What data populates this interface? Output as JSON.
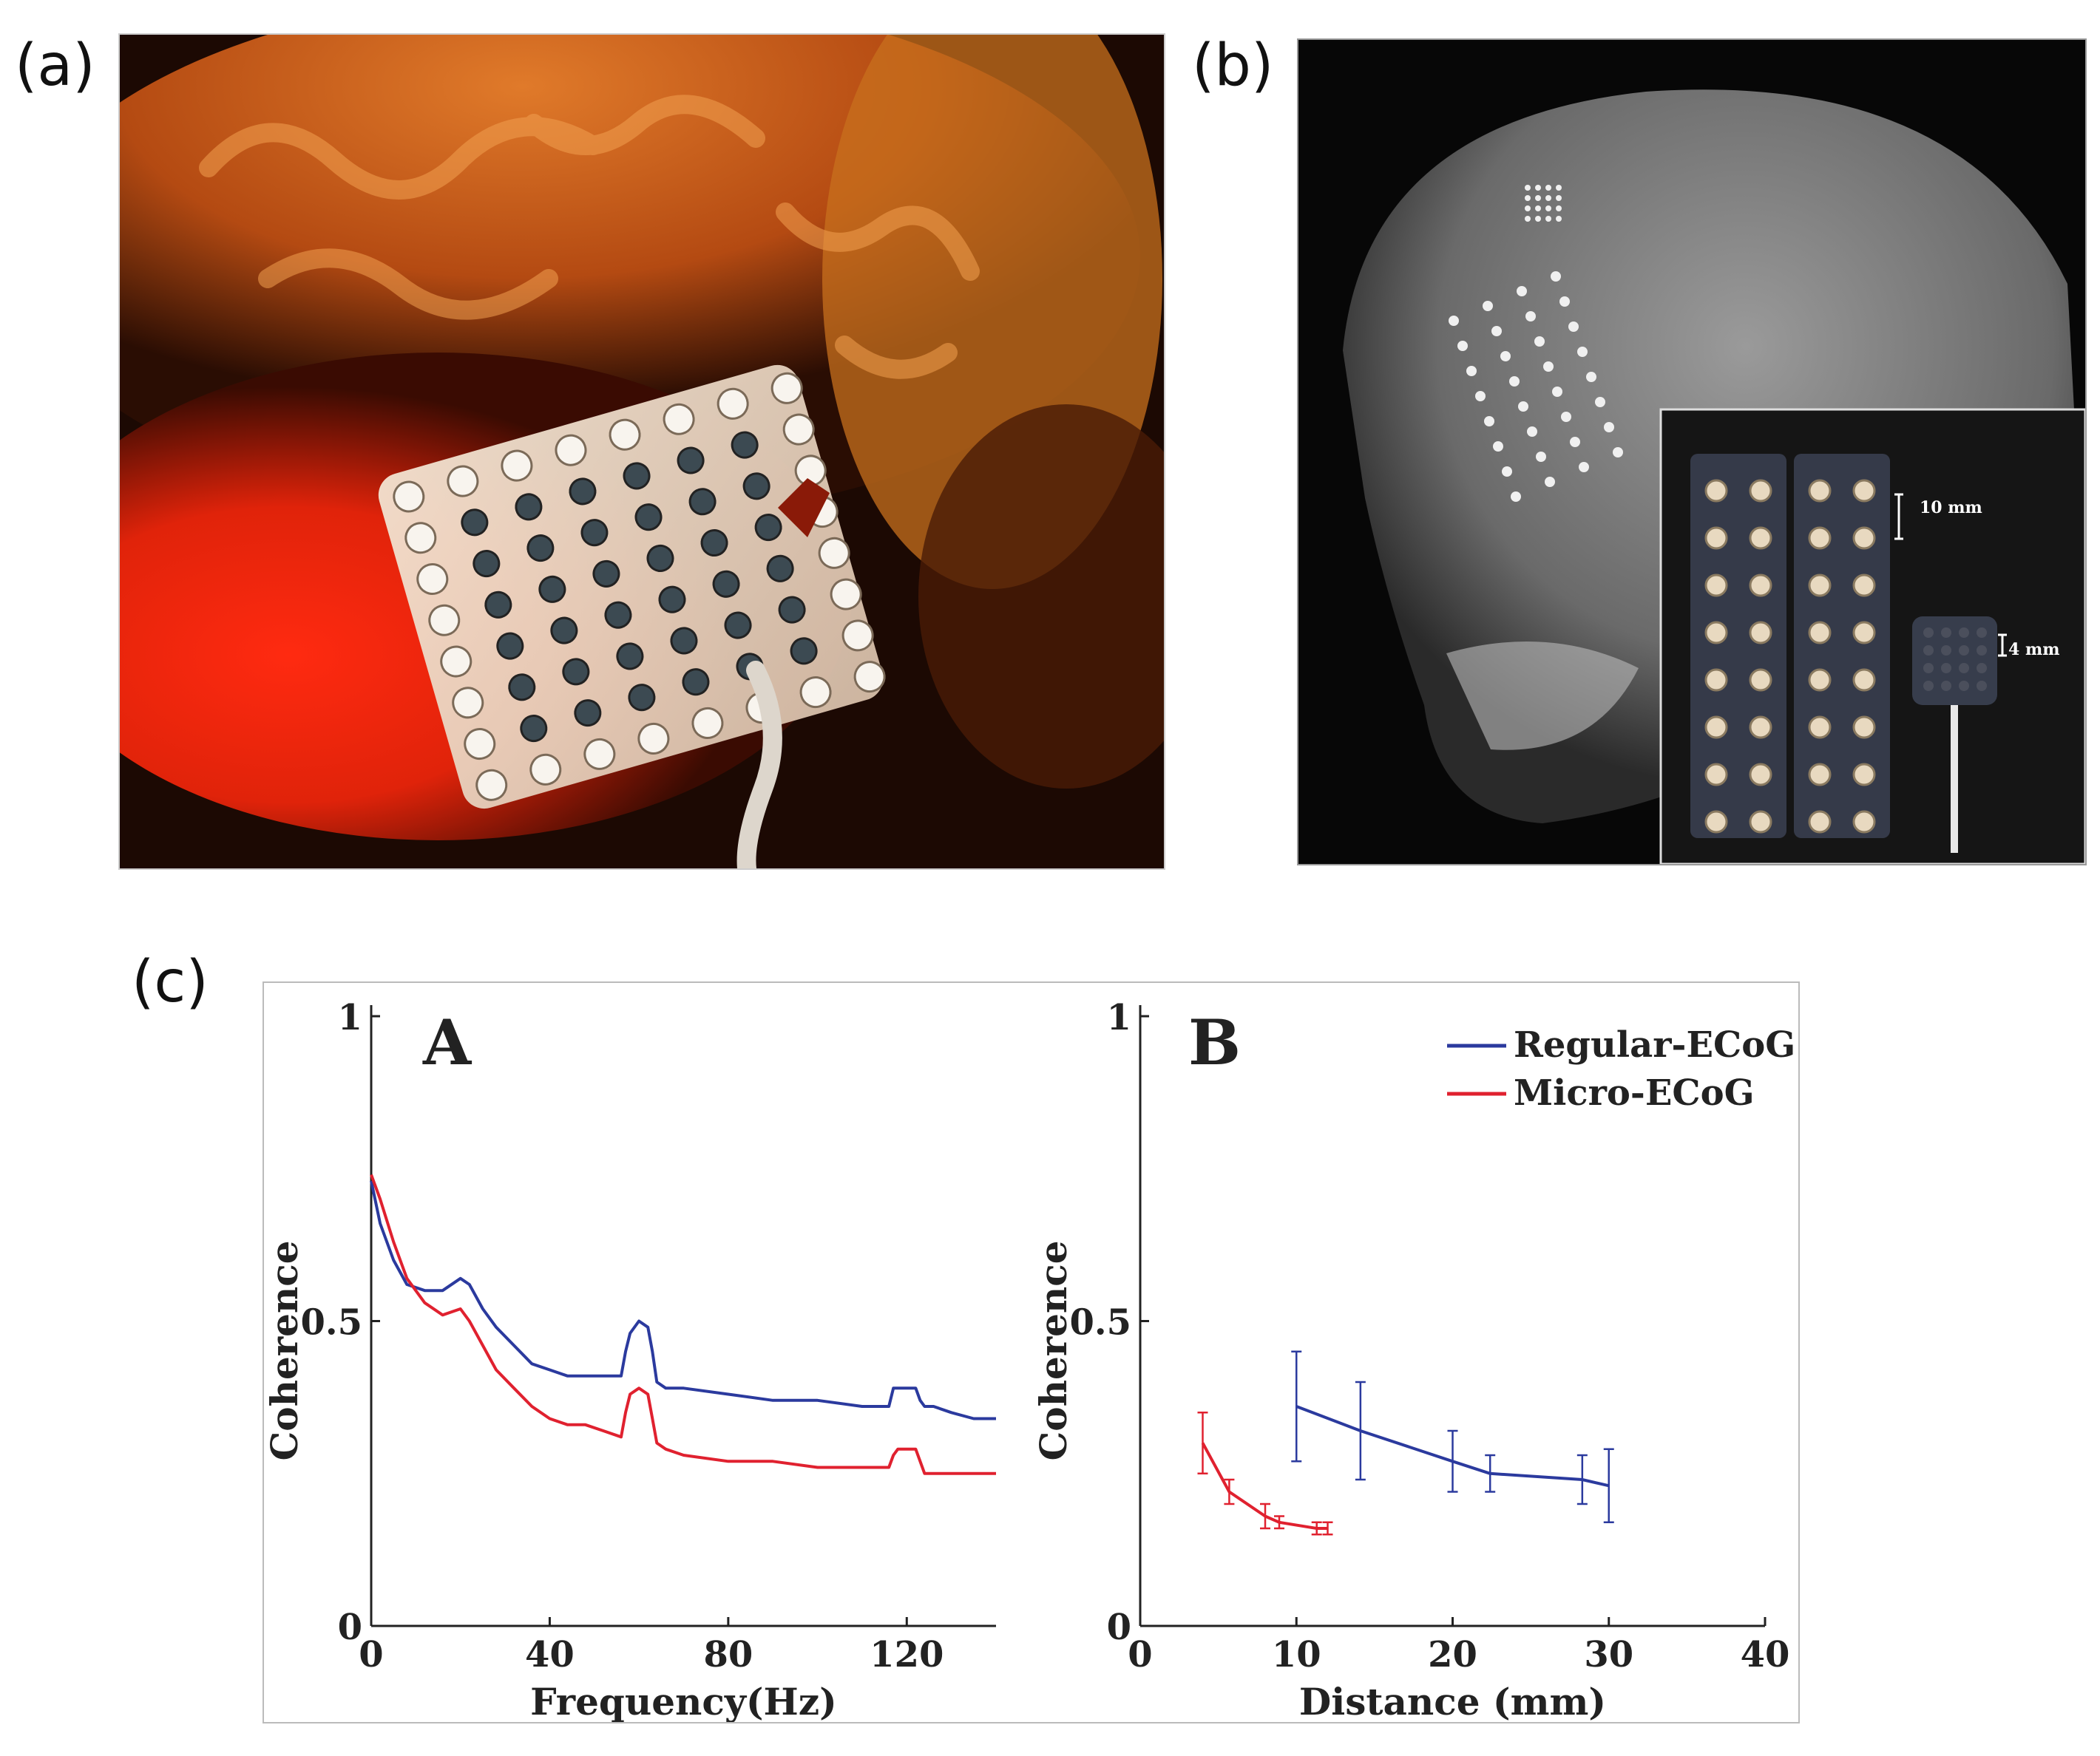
{
  "panels": {
    "a": {
      "label": "(a)",
      "image": "photo of a flexible electrode grid in front of a brain model"
    },
    "b": {
      "label": "(b)",
      "image": "skull x-ray with implanted electrode grids and inset of electrode arrays",
      "annotations": {
        "spacing_large": "10 mm",
        "spacing_small": "4 mm"
      }
    },
    "c": {
      "label": "(c)"
    }
  },
  "colors": {
    "regular": "#2b3a9e",
    "micro": "#e0212f",
    "axis": "#222222"
  },
  "chart_data": [
    {
      "panel": "A",
      "type": "line",
      "xlabel": "Frequency(Hz)",
      "ylabel": "Coherence",
      "xlim": [
        0,
        140
      ],
      "ylim": [
        0,
        1
      ],
      "xticks": [
        "0",
        "40",
        "80",
        "120"
      ],
      "yticks": [
        "0",
        "0.5",
        "1"
      ],
      "series": [
        {
          "name": "Regular-ECoG",
          "color": "#2b3a9e",
          "x": [
            0,
            2,
            5,
            8,
            12,
            16,
            20,
            22,
            25,
            28,
            32,
            36,
            40,
            44,
            48,
            52,
            56,
            57,
            58,
            60,
            62,
            63,
            64,
            66,
            70,
            80,
            90,
            100,
            110,
            116,
            117,
            118,
            120,
            122,
            123,
            124,
            126,
            130,
            135,
            140
          ],
          "y": [
            0.73,
            0.66,
            0.6,
            0.56,
            0.55,
            0.55,
            0.57,
            0.56,
            0.52,
            0.49,
            0.46,
            0.43,
            0.42,
            0.41,
            0.41,
            0.41,
            0.41,
            0.45,
            0.48,
            0.5,
            0.49,
            0.45,
            0.4,
            0.39,
            0.39,
            0.38,
            0.37,
            0.37,
            0.36,
            0.36,
            0.39,
            0.39,
            0.39,
            0.39,
            0.37,
            0.36,
            0.36,
            0.35,
            0.34,
            0.34
          ]
        },
        {
          "name": "Micro-ECoG",
          "color": "#e0212f",
          "x": [
            0,
            2,
            5,
            8,
            12,
            16,
            20,
            22,
            25,
            28,
            32,
            36,
            40,
            44,
            48,
            52,
            56,
            57,
            58,
            60,
            62,
            63,
            64,
            66,
            70,
            80,
            90,
            100,
            110,
            116,
            117,
            118,
            120,
            122,
            123,
            124,
            126,
            130,
            135,
            140
          ],
          "y": [
            0.74,
            0.7,
            0.63,
            0.57,
            0.53,
            0.51,
            0.52,
            0.5,
            0.46,
            0.42,
            0.39,
            0.36,
            0.34,
            0.33,
            0.33,
            0.32,
            0.31,
            0.35,
            0.38,
            0.39,
            0.38,
            0.34,
            0.3,
            0.29,
            0.28,
            0.27,
            0.27,
            0.26,
            0.26,
            0.26,
            0.28,
            0.29,
            0.29,
            0.29,
            0.27,
            0.25,
            0.25,
            0.25,
            0.25,
            0.25
          ]
        }
      ]
    },
    {
      "panel": "B",
      "type": "line",
      "xlabel": "Distance (mm)",
      "ylabel": "Coherence",
      "xlim": [
        0,
        40
      ],
      "ylim": [
        0,
        1
      ],
      "xticks": [
        "0",
        "10",
        "20",
        "30",
        "40"
      ],
      "yticks": [
        "0",
        "0.5",
        "1"
      ],
      "legend": {
        "position": "top-right",
        "entries": [
          "Regular-ECoG",
          "Micro-ECoG"
        ]
      },
      "series": [
        {
          "name": "Regular-ECoG",
          "color": "#2b3a9e",
          "x": [
            10,
            14.1,
            20,
            22.4,
            28.3,
            30
          ],
          "y": [
            0.36,
            0.32,
            0.27,
            0.25,
            0.24,
            0.23
          ],
          "err": [
            0.09,
            0.08,
            0.05,
            0.03,
            0.04,
            0.06
          ]
        },
        {
          "name": "Micro-ECoG",
          "color": "#e0212f",
          "x": [
            4,
            5.7,
            8,
            8.9,
            11.3,
            12
          ],
          "y": [
            0.3,
            0.22,
            0.18,
            0.17,
            0.16,
            0.16
          ],
          "err": [
            0.05,
            0.02,
            0.02,
            0.01,
            0.01,
            0.01
          ]
        }
      ]
    }
  ]
}
